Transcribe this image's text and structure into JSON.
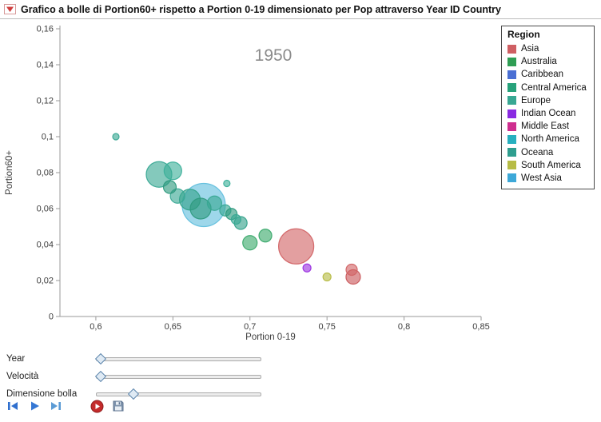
{
  "window": {
    "title": "Grafico a bolle di Portion60+ rispetto a Portion 0-19 dimensionato per Pop attraverso Year ID Country"
  },
  "chart_data": {
    "type": "scatter",
    "subtype": "bubble",
    "year_label": "1950",
    "xlabel": "Portion 0-19",
    "ylabel": "Portion60+",
    "xlim": [
      0.5767,
      0.85
    ],
    "ylim": [
      0,
      0.16
    ],
    "grid": false,
    "x_ticks": [
      {
        "v": 0.6,
        "label": "0,6"
      },
      {
        "v": 0.65,
        "label": "0,65"
      },
      {
        "v": 0.7,
        "label": "0,7"
      },
      {
        "v": 0.75,
        "label": "0,75"
      },
      {
        "v": 0.8,
        "label": "0,8"
      },
      {
        "v": 0.85,
        "label": "0,85"
      }
    ],
    "y_ticks": [
      {
        "v": 0.0,
        "label": "0"
      },
      {
        "v": 0.02,
        "label": "0,02"
      },
      {
        "v": 0.04,
        "label": "0,04"
      },
      {
        "v": 0.06,
        "label": "0,06"
      },
      {
        "v": 0.08,
        "label": "0,08"
      },
      {
        "v": 0.1,
        "label": "0,1"
      },
      {
        "v": 0.12,
        "label": "0,12"
      },
      {
        "v": 0.14,
        "label": "0,14"
      },
      {
        "v": 0.16,
        "label": "0,16"
      }
    ],
    "bubbles": [
      {
        "x": 0.613,
        "y": 0.1,
        "r": 4,
        "region": "Europe",
        "color": "#38a893"
      },
      {
        "x": 0.641,
        "y": 0.079,
        "r": 16,
        "region": "Europe",
        "color": "#38a893"
      },
      {
        "x": 0.65,
        "y": 0.081,
        "r": 11,
        "region": "Europe",
        "color": "#3cb09a"
      },
      {
        "x": 0.648,
        "y": 0.072,
        "r": 8,
        "region": "Europe",
        "color": "#2d9a7e"
      },
      {
        "x": 0.653,
        "y": 0.067,
        "r": 9,
        "region": "Europe",
        "color": "#38a893"
      },
      {
        "x": 0.661,
        "y": 0.065,
        "r": 13,
        "region": "Europe",
        "color": "#33a28a"
      },
      {
        "x": 0.67,
        "y": 0.062,
        "r": 27,
        "region": "West Asia",
        "color": "#62bfdd"
      },
      {
        "x": 0.668,
        "y": 0.06,
        "r": 13,
        "region": "Europe",
        "color": "#2d9a7e"
      },
      {
        "x": 0.677,
        "y": 0.063,
        "r": 9,
        "region": "Europe",
        "color": "#38a893"
      },
      {
        "x": 0.685,
        "y": 0.074,
        "r": 4,
        "region": "Europe",
        "color": "#3cb09a"
      },
      {
        "x": 0.684,
        "y": 0.059,
        "r": 7,
        "region": "Europe",
        "color": "#38a893"
      },
      {
        "x": 0.688,
        "y": 0.057,
        "r": 7,
        "region": "Europe",
        "color": "#2d9a7e"
      },
      {
        "x": 0.691,
        "y": 0.054,
        "r": 6,
        "region": "Europe",
        "color": "#38a893"
      },
      {
        "x": 0.694,
        "y": 0.052,
        "r": 8,
        "region": "Europe",
        "color": "#33a28a"
      },
      {
        "x": 0.7,
        "y": 0.041,
        "r": 9,
        "region": "Australia",
        "color": "#3aa96b"
      },
      {
        "x": 0.71,
        "y": 0.045,
        "r": 8,
        "region": "Australia",
        "color": "#3aa96b"
      },
      {
        "x": 0.73,
        "y": 0.039,
        "r": 22,
        "region": "Asia",
        "color": "#d26466"
      },
      {
        "x": 0.737,
        "y": 0.027,
        "r": 5,
        "region": "Indian Ocean",
        "color": "#9b30e0"
      },
      {
        "x": 0.75,
        "y": 0.022,
        "r": 5,
        "region": "South America",
        "color": "#b7bc45"
      },
      {
        "x": 0.766,
        "y": 0.026,
        "r": 7,
        "region": "Asia",
        "color": "#d26466"
      },
      {
        "x": 0.767,
        "y": 0.022,
        "r": 9,
        "region": "Asia",
        "color": "#c9575a"
      }
    ]
  },
  "legend": {
    "title": "Region",
    "items": [
      {
        "label": "Asia",
        "color": "#cf5f63"
      },
      {
        "label": "Australia",
        "color": "#2f9e54"
      },
      {
        "label": "Caribbean",
        "color": "#4a6fd4"
      },
      {
        "label": "Central America",
        "color": "#27a27b"
      },
      {
        "label": "Europe",
        "color": "#38a893"
      },
      {
        "label": "Indian Ocean",
        "color": "#8a2be2"
      },
      {
        "label": "Middle East",
        "color": "#cf2f8f"
      },
      {
        "label": "North America",
        "color": "#27b0bf"
      },
      {
        "label": "Oceana",
        "color": "#2f9e8f"
      },
      {
        "label": "South America",
        "color": "#b7bc45"
      },
      {
        "label": "West Asia",
        "color": "#3da8d8"
      }
    ]
  },
  "sliders": [
    {
      "label": "Year",
      "value": 0
    },
    {
      "label": "Velocità",
      "value": 0
    },
    {
      "label": "Dimensione bolla",
      "value": 0.21
    }
  ],
  "controls": {
    "buttons": [
      "step-back",
      "play",
      "step-forward",
      "record",
      "save"
    ]
  }
}
